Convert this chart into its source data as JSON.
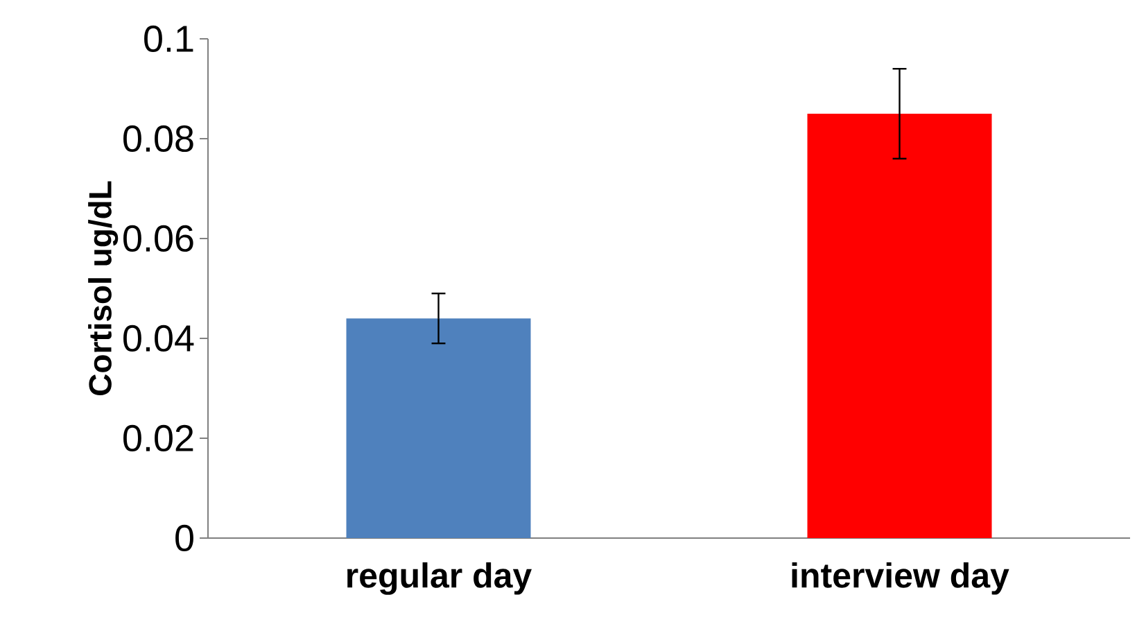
{
  "chart_data": {
    "type": "bar",
    "ylabel": "Cortisol ug/dL",
    "categories": [
      "regular day",
      "interview day"
    ],
    "values": [
      0.044,
      0.085
    ],
    "colors": [
      "#4f81bd",
      "#ff0000"
    ],
    "errors": [
      0.005,
      0.009
    ],
    "ylim": [
      0,
      0.1
    ],
    "yticks": [
      0,
      0.02,
      0.04,
      0.06,
      0.08,
      0.1
    ],
    "grid": false
  }
}
